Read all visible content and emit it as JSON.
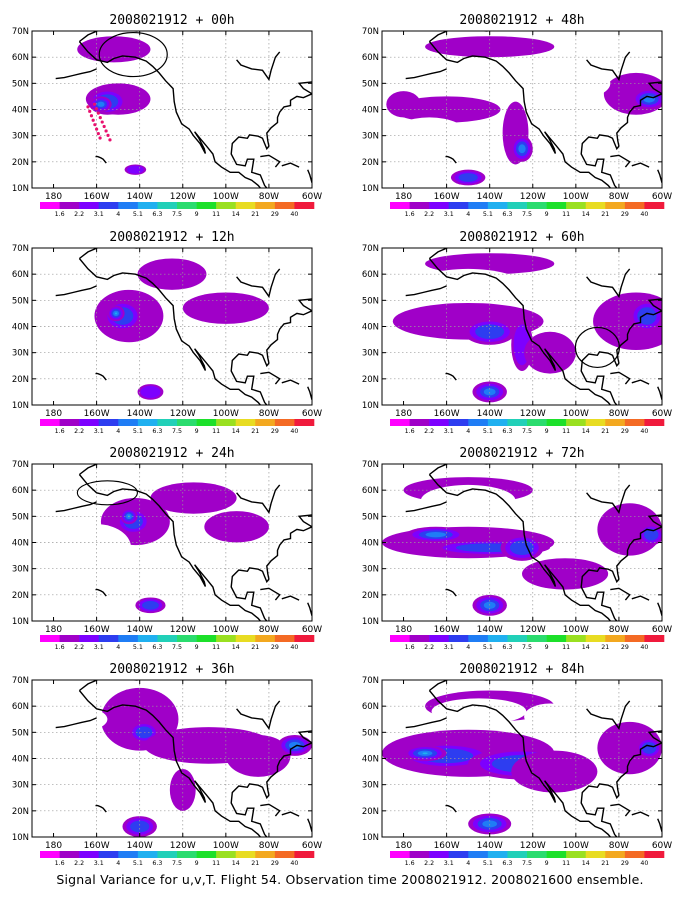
{
  "caption": "Signal Variance for u,v,T. Flight 54. Observation time 2008021912. 2008021600 ensemble.",
  "lat_labels": [
    "70N",
    "60N",
    "50N",
    "40N",
    "30N",
    "20N",
    "10N"
  ],
  "lon_labels": [
    "180",
    "160W",
    "140W",
    "120W",
    "100W",
    "80W",
    "60W"
  ],
  "colorbar": {
    "labels": [
      "1.6",
      "2.2",
      "3.1",
      "4",
      "5.1",
      "6.3",
      "7.5",
      "9",
      "11",
      "14",
      "21",
      "29",
      "40"
    ],
    "colors": [
      "#ff00ff",
      "#a000c8",
      "#7d00ff",
      "#2e3df0",
      "#1f7df5",
      "#20b0f0",
      "#21d0b8",
      "#2adc6e",
      "#1ce02a",
      "#9ae020",
      "#e8dc22",
      "#f3a81f",
      "#f46a24",
      "#f01a3c"
    ]
  },
  "panels": [
    {
      "title": "2008021912 + 00h"
    },
    {
      "title": "2008021912 + 48h"
    },
    {
      "title": "2008021912 + 12h"
    },
    {
      "title": "2008021912 + 60h"
    },
    {
      "title": "2008021912 + 24h"
    },
    {
      "title": "2008021912 + 72h"
    },
    {
      "title": "2008021912 + 36h"
    },
    {
      "title": "2008021912 + 84h"
    }
  ],
  "flight_track_color": "#e8106e",
  "colors": {
    "coast": "#000000",
    "grid": "#9a9a9a"
  }
}
